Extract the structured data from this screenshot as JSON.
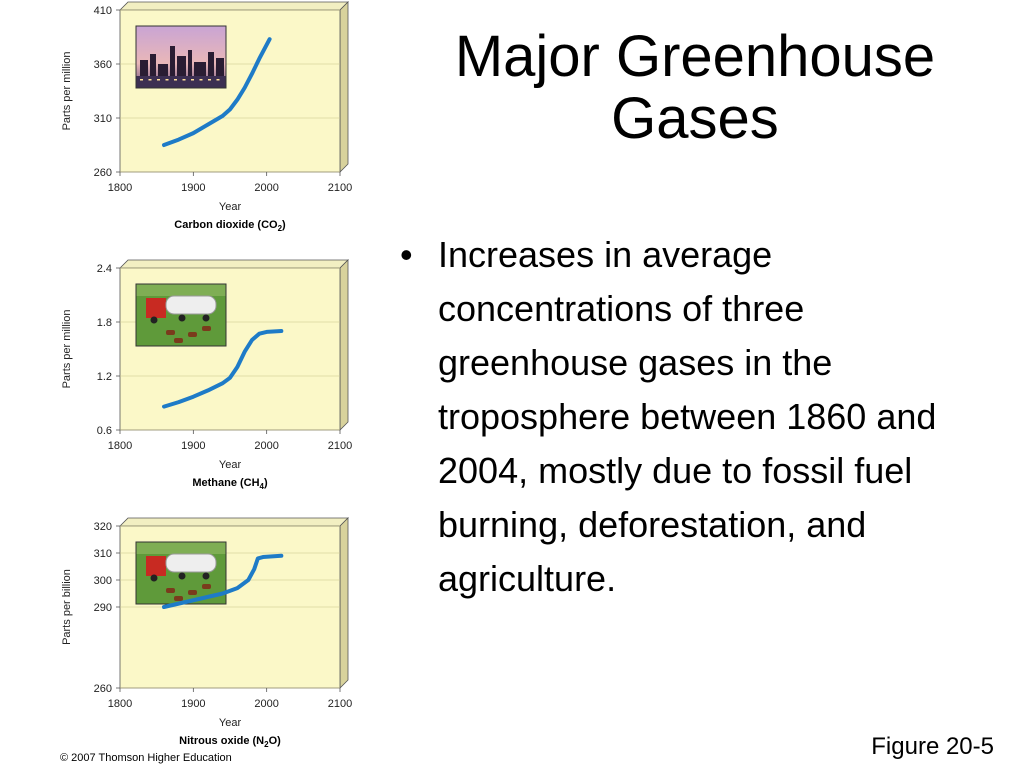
{
  "slide": {
    "title_lines": [
      "Major Greenhouse",
      "Gases"
    ],
    "bullet_symbol": "•",
    "bullet": "Increases in average concentrations of three greenhouse gases in the troposphere between 1860 and 2004, mostly due to fossil fuel burning, deforestation, and agriculture.",
    "figure_label": "Figure 20-5",
    "copyright": "© 2007 Thomson Higher Education"
  },
  "chart_data": [
    {
      "type": "line",
      "name_main": "Carbon dioxide (CO",
      "name_sub": "2",
      "name_end": ")",
      "xlabel": "Year",
      "ylabel": "Parts per million",
      "xlim": [
        1800,
        2100
      ],
      "ylim": [
        260,
        410
      ],
      "xticks": [
        1800,
        1900,
        2000,
        2100
      ],
      "yticks": [
        260,
        310,
        360,
        410
      ],
      "x": [
        1860,
        1880,
        1900,
        1920,
        1940,
        1950,
        1960,
        1970,
        1980,
        1990,
        2004
      ],
      "y": [
        285,
        290,
        296,
        304,
        312,
        318,
        327,
        338,
        351,
        365,
        383
      ],
      "panel_color": "#fbf8c8",
      "line_color": "#1e7bc7",
      "photo": "industrial-skyline-photo"
    },
    {
      "type": "line",
      "name_main": "Methane (CH",
      "name_sub": "4",
      "name_end": ")",
      "xlabel": "Year",
      "ylabel": "Parts per million",
      "xlim": [
        1800,
        2100
      ],
      "ylim": [
        0.6,
        2.4
      ],
      "xticks": [
        1800,
        1900,
        2000,
        2100
      ],
      "yticks": [
        0.6,
        1.2,
        1.8,
        2.4
      ],
      "x": [
        1860,
        1880,
        1900,
        1920,
        1940,
        1950,
        1960,
        1970,
        1980,
        1990,
        2000,
        2020
      ],
      "y": [
        0.86,
        0.91,
        0.97,
        1.04,
        1.12,
        1.18,
        1.3,
        1.47,
        1.6,
        1.67,
        1.69,
        1.7
      ],
      "panel_color": "#fbf8c8",
      "line_color": "#1e7bc7",
      "photo": "tanker-truck-cattle-photo"
    },
    {
      "type": "line",
      "name_main": "Nitrous oxide (N",
      "name_sub": "2",
      "name_end": "O)",
      "xlabel": "Year",
      "ylabel": "Parts per  billion",
      "xlim": [
        1800,
        2100
      ],
      "ylim": [
        260,
        320
      ],
      "xticks": [
        1800,
        1900,
        2000,
        2100
      ],
      "yticks": [
        260,
        290,
        300,
        310,
        320
      ],
      "x": [
        1860,
        1900,
        1940,
        1960,
        1975,
        1983,
        1988,
        1995,
        2020
      ],
      "y": [
        290,
        292.5,
        295,
        297,
        300,
        304,
        308,
        308.5,
        309
      ],
      "panel_color": "#fbf8c8",
      "line_color": "#1e7bc7",
      "photo": "tanker-truck-cattle-photo"
    }
  ]
}
